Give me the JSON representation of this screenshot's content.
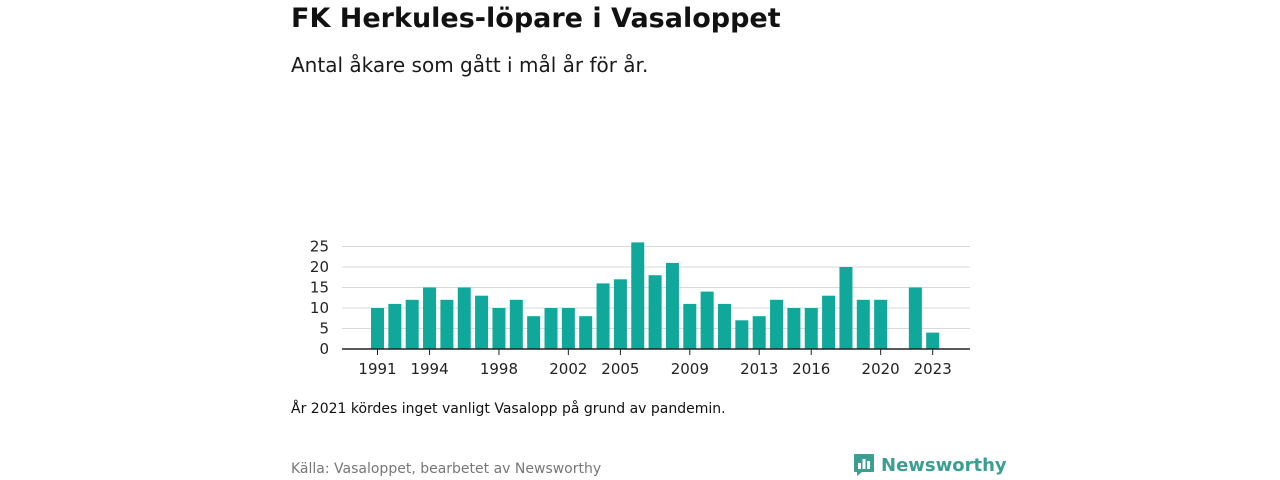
{
  "header": {
    "title": "FK Herkules-löpare i Vasaloppet",
    "subtitle": "Antal åkare som gått i mål år för år."
  },
  "footer": {
    "note": "År 2021 kördes inget vanligt Vasalopp på grund av pandemin.",
    "source": "Källa: Vasaloppet, bearbetet av Newsworthy",
    "brand": "Newsworthy",
    "brand_icon": "newsworthy-logo-icon"
  },
  "colors": {
    "bar": "#0fa89a",
    "grid": "#d9d9d9",
    "axis": "#222222",
    "brand": "#3a9e93"
  },
  "chart_data": {
    "type": "bar",
    "title": "FK Herkules-löpare i Vasaloppet",
    "subtitle": "Antal åkare som gått i mål år för år.",
    "xlabel": "",
    "ylabel": "",
    "x": [
      1991,
      1992,
      1993,
      1994,
      1995,
      1996,
      1997,
      1998,
      1999,
      2000,
      2001,
      2002,
      2003,
      2004,
      2005,
      2006,
      2007,
      2008,
      2009,
      2010,
      2011,
      2012,
      2013,
      2014,
      2015,
      2016,
      2017,
      2018,
      2019,
      2020,
      2021,
      2022,
      2023
    ],
    "values": [
      10,
      11,
      12,
      15,
      12,
      15,
      13,
      10,
      12,
      8,
      10,
      10,
      8,
      16,
      17,
      26,
      18,
      21,
      11,
      14,
      11,
      7,
      8,
      12,
      10,
      10,
      13,
      20,
      12,
      12,
      null,
      15,
      4
    ],
    "x_tick_labels": [
      "1991",
      "1994",
      "1998",
      "2002",
      "2005",
      "2009",
      "2013",
      "2016",
      "2020",
      "2023"
    ],
    "y_ticks": [
      0,
      5,
      10,
      15,
      20,
      25
    ],
    "ylim": [
      0,
      26
    ],
    "grid": true,
    "legend": "none"
  }
}
